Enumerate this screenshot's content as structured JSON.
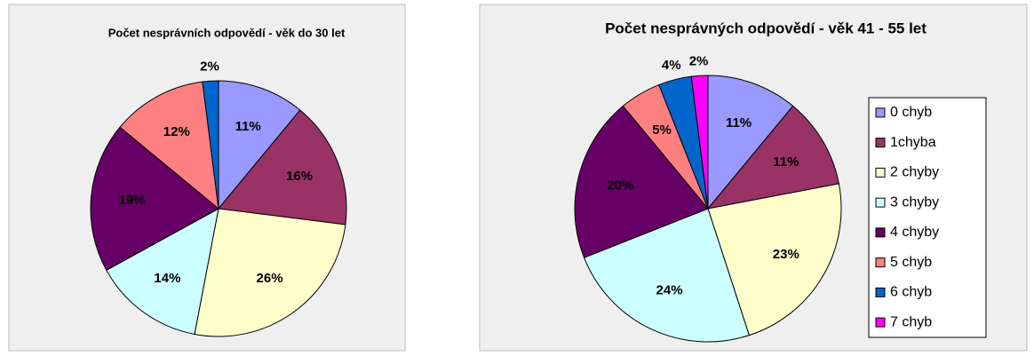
{
  "chart_data": [
    {
      "type": "pie",
      "title": "Počet nesprávních odpovědí - věk do 30 let",
      "values": [
        11,
        16,
        26,
        14,
        19,
        12,
        2
      ],
      "value_labels": [
        "11%",
        "16%",
        "26%",
        "14%",
        "19%",
        "12%",
        "2%"
      ],
      "colors": [
        "#9999ff",
        "#993366",
        "#ffffcc",
        "#ccffff",
        "#660066",
        "#ff8080",
        "#0066cc"
      ]
    },
    {
      "type": "pie",
      "title": "Počet nesprávných odpovědí - věk 41 - 55 let",
      "categories": [
        "0 chyb",
        "1chyba",
        "2 chyby",
        "3 chyby",
        "4 chyby",
        "5 chyb",
        "6 chyb",
        "7 chyb"
      ],
      "values": [
        11,
        11,
        23,
        24,
        20,
        5,
        4,
        2
      ],
      "value_labels": [
        "11%",
        "11%",
        "23%",
        "24%",
        "20%",
        "5%",
        "4%",
        "2%"
      ],
      "colors": [
        "#9999ff",
        "#993366",
        "#ffffcc",
        "#ccffff",
        "#660066",
        "#ff8080",
        "#0066cc",
        "#ff00ff"
      ],
      "legend": "right"
    }
  ]
}
